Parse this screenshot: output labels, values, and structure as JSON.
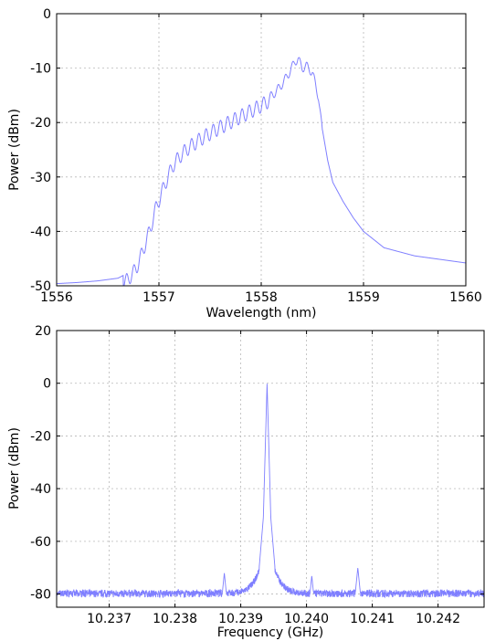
{
  "colors": {
    "line": "#7f7fff",
    "grid": "#b8b8b8",
    "frame": "#000000"
  },
  "chart_data": [
    {
      "type": "line",
      "xlabel": "Wavelength (nm)",
      "ylabel": "Power (dBm)",
      "xlim": [
        1556,
        1560
      ],
      "ylim": [
        -50,
        0
      ],
      "xticks": [
        1556,
        1557,
        1558,
        1559,
        1560
      ],
      "xtick_labels": [
        "1556",
        "1557",
        "1558",
        "1559",
        "1560"
      ],
      "yticks": [
        -50,
        -40,
        -30,
        -20,
        -10,
        0
      ],
      "ytick_labels": [
        "-50",
        "-40",
        "-30",
        "-20",
        "-10",
        "0"
      ],
      "grid": true,
      "legend": "none",
      "series": [
        {
          "color": "#7f7fff",
          "x": [
            1556.0,
            1556.2,
            1556.4,
            1556.6,
            1556.7,
            1556.78,
            1556.85,
            1556.92,
            1556.97,
            1557.0,
            1557.07,
            1557.14,
            1557.21,
            1557.28,
            1557.35,
            1557.42,
            1557.49,
            1557.56,
            1557.63,
            1557.7,
            1557.77,
            1557.84,
            1557.91,
            1557.98,
            1558.05,
            1558.12,
            1558.19,
            1558.26,
            1558.33,
            1558.36,
            1558.4,
            1558.44,
            1558.5,
            1558.56,
            1558.6,
            1558.65,
            1558.7,
            1558.8,
            1558.9,
            1559.0,
            1559.2,
            1559.5,
            1560.0
          ],
          "y": [
            -49.6,
            -49.4,
            -49.1,
            -48.6,
            -47.6,
            -45.5,
            -42.0,
            -38.0,
            -34.5,
            -33.0,
            -29.5,
            -26.5,
            -24.8,
            -23.5,
            -22.5,
            -21.6,
            -20.8,
            -20.0,
            -19.3,
            -18.6,
            -17.9,
            -17.2,
            -16.5,
            -15.8,
            -15.0,
            -14.0,
            -12.5,
            -10.5,
            -8.0,
            -7.5,
            -9.2,
            -8.8,
            -10.0,
            -14.5,
            -21.5,
            -27.0,
            -31.0,
            -34.5,
            -37.5,
            -40.0,
            -43.0,
            -44.5,
            -45.8
          ]
        }
      ]
    },
    {
      "type": "line",
      "xlabel": "Frequency (GHz)",
      "ylabel": "Power (dBm)",
      "xlim": [
        10.2362,
        10.2427
      ],
      "ylim": [
        -85,
        20
      ],
      "xticks": [
        10.237,
        10.238,
        10.239,
        10.24,
        10.241,
        10.242
      ],
      "xtick_labels": [
        "10.237",
        "10.238",
        "10.239",
        "10.240",
        "10.241",
        "10.242"
      ],
      "yticks": [
        -80,
        -60,
        -40,
        -20,
        0,
        20
      ],
      "ytick_labels": [
        "-80",
        "-60",
        "-40",
        "-20",
        "0",
        "20"
      ],
      "grid": true,
      "legend": "none",
      "series": [
        {
          "color": "#7f7fff",
          "noise_floor_dBm": -81,
          "center": 10.2394,
          "carrier_peak_dBm": 0,
          "spurs": [
            {
              "x": 10.23805,
              "y": -78
            },
            {
              "x": 10.23875,
              "y": -72
            },
            {
              "x": 10.24008,
              "y": -73
            },
            {
              "x": 10.24078,
              "y": -70
            }
          ]
        }
      ]
    }
  ]
}
